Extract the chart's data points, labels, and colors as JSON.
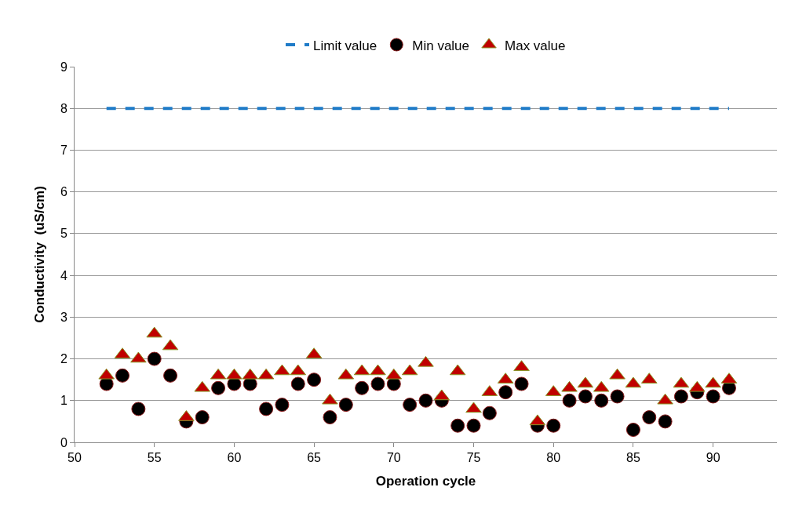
{
  "chart_data": {
    "type": "scatter",
    "xlabel": "Operation cycle",
    "ylabel": "Conductivity  (uS/cm)",
    "xlim": [
      50,
      94
    ],
    "xticks": [
      50,
      55,
      60,
      65,
      70,
      75,
      80,
      85,
      90
    ],
    "ylim": [
      0,
      9
    ],
    "yticks": [
      0,
      1,
      2,
      3,
      4,
      5,
      6,
      7,
      8,
      9
    ],
    "grid": "y",
    "legend": "top",
    "series": [
      {
        "name": "Limit value",
        "type": "line",
        "line_style": "dashed",
        "marker": "none",
        "color": "#1f7bc8",
        "x": [
          52,
          91
        ],
        "values": [
          8,
          8
        ]
      },
      {
        "name": "Min value",
        "marker": "circle",
        "color": "#000000",
        "x": [
          52,
          53,
          54,
          55,
          56,
          57,
          58,
          59,
          60,
          61,
          62,
          63,
          64,
          65,
          66,
          67,
          68,
          69,
          70,
          71,
          72,
          73,
          74,
          75,
          76,
          77,
          78,
          79,
          80,
          81,
          82,
          83,
          84,
          85,
          86,
          87,
          88,
          89,
          90,
          91
        ],
        "values": [
          1.4,
          1.6,
          0.8,
          2.0,
          1.6,
          0.5,
          0.6,
          1.3,
          1.4,
          1.4,
          0.8,
          0.9,
          1.4,
          1.5,
          0.6,
          0.9,
          1.3,
          1.4,
          1.4,
          0.9,
          1.0,
          1.0,
          0.4,
          0.4,
          0.7,
          1.2,
          1.4,
          0.4,
          0.4,
          1.0,
          1.1,
          1.0,
          1.1,
          0.3,
          0.6,
          0.5,
          1.1,
          1.2,
          1.1,
          1.3
        ]
      },
      {
        "name": "Max value",
        "marker": "triangle",
        "color": "#c00000",
        "x": [
          52,
          53,
          54,
          55,
          56,
          57,
          58,
          59,
          60,
          61,
          62,
          63,
          64,
          65,
          66,
          67,
          68,
          69,
          70,
          71,
          72,
          73,
          74,
          75,
          76,
          77,
          78,
          79,
          80,
          81,
          82,
          83,
          84,
          85,
          86,
          87,
          88,
          89,
          90,
          91
        ],
        "values": [
          1.6,
          2.1,
          2.0,
          2.6,
          2.3,
          0.6,
          1.3,
          1.6,
          1.6,
          1.6,
          1.6,
          1.7,
          1.7,
          2.1,
          1.0,
          1.6,
          1.7,
          1.7,
          1.6,
          1.7,
          1.9,
          1.1,
          1.7,
          0.8,
          1.2,
          1.5,
          1.8,
          0.5,
          1.2,
          1.3,
          1.4,
          1.3,
          1.6,
          1.4,
          1.5,
          1.0,
          1.4,
          1.3,
          1.4,
          1.5
        ]
      }
    ]
  }
}
